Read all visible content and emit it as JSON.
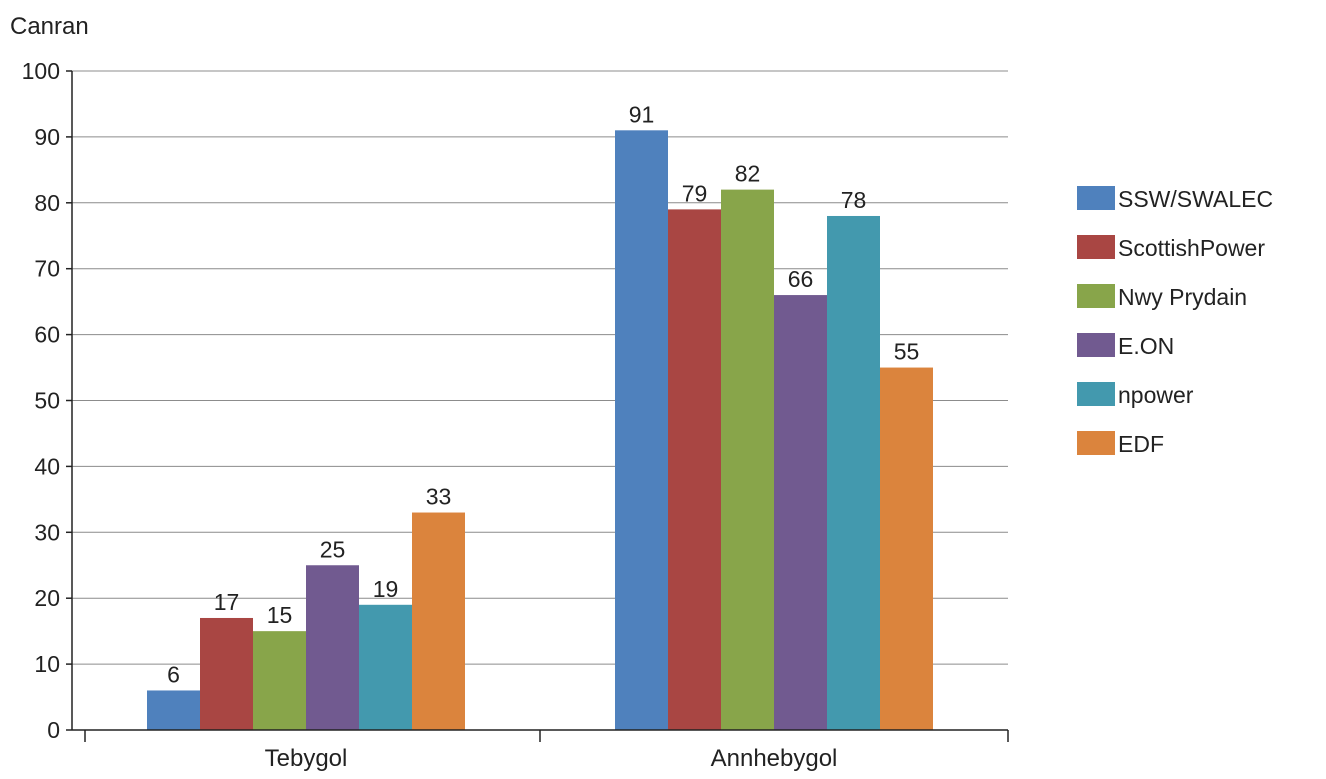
{
  "chart_data": {
    "type": "bar",
    "ylabel": "Canran",
    "categories": [
      "Tebygol",
      "Annhebygol"
    ],
    "series": [
      {
        "name": "SSW/SWALEC",
        "values": [
          6,
          91
        ],
        "color": "#4f81bd"
      },
      {
        "name": "ScottishPower",
        "values": [
          17,
          79
        ],
        "color": "#a94643"
      },
      {
        "name": "Nwy Prydain",
        "values": [
          15,
          82
        ],
        "color": "#88a54a"
      },
      {
        "name": "E.ON",
        "values": [
          25,
          66
        ],
        "color": "#715a90"
      },
      {
        "name": "npower",
        "values": [
          19,
          78
        ],
        "color": "#4399ae"
      },
      {
        "name": "EDF",
        "values": [
          33,
          55
        ],
        "color": "#db843d"
      }
    ],
    "yticks": [
      0,
      10,
      20,
      30,
      40,
      50,
      60,
      70,
      80,
      90,
      100
    ],
    "ylim": [
      0,
      100
    ],
    "grid": true,
    "legend_position": "right"
  }
}
